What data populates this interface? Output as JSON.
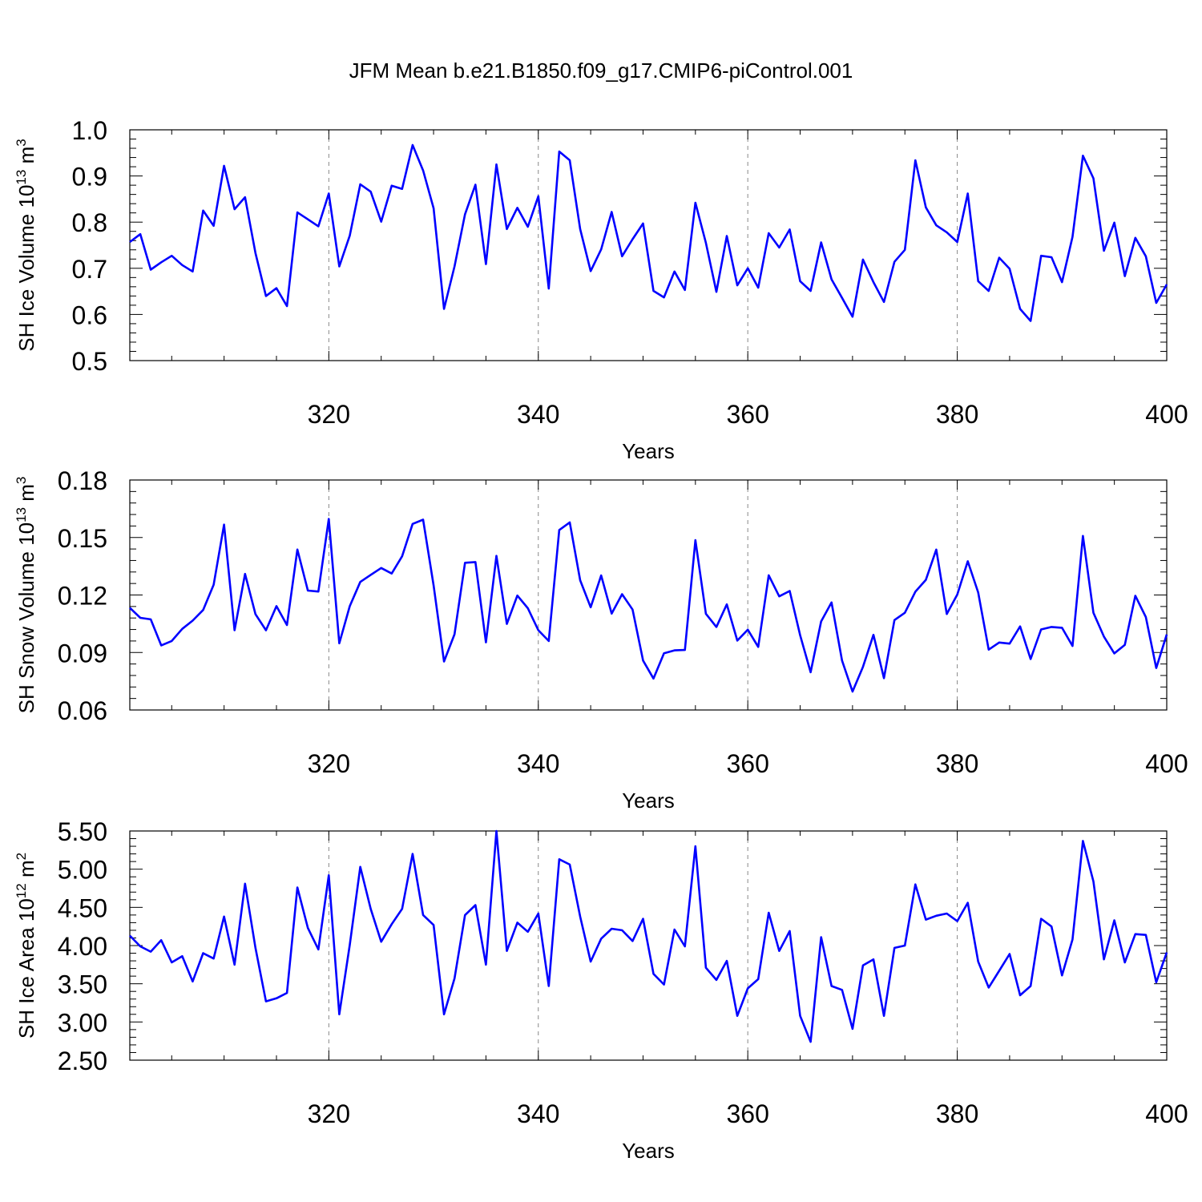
{
  "title": "JFM Mean b.e21.B1850.f09_g17.CMIP6-piControl.001",
  "colors": {
    "line": "#0000ff",
    "axis": "#000000",
    "grid": "#888888"
  },
  "chart_data": [
    {
      "type": "line",
      "xlabel": "Years",
      "ylabel": "SH Ice Volume 10",
      "ylabel_sup": "13",
      "ylabel_unit": " m",
      "ylabel_unit_sup": "3",
      "xlim": [
        301,
        400
      ],
      "ylim": [
        0.5,
        1.0
      ],
      "xticks": [
        320,
        340,
        360,
        380,
        400
      ],
      "yticks": [
        "0.5",
        "0.6",
        "0.7",
        "0.8",
        "0.9",
        "1.0"
      ],
      "grid_x": [
        320,
        340,
        360,
        380
      ],
      "x_start": 301,
      "series": [
        {
          "values": [
            0.757,
            0.774,
            0.697,
            0.713,
            0.727,
            0.707,
            0.693,
            0.825,
            0.792,
            0.922,
            0.828,
            0.854,
            0.733,
            0.64,
            0.657,
            0.618,
            0.821,
            0.806,
            0.791,
            0.862,
            0.704,
            0.771,
            0.882,
            0.866,
            0.801,
            0.879,
            0.872,
            0.967,
            0.912,
            0.83,
            0.612,
            0.704,
            0.817,
            0.881,
            0.709,
            0.925,
            0.785,
            0.831,
            0.79,
            0.856,
            0.656,
            0.953,
            0.934,
            0.785,
            0.694,
            0.741,
            0.822,
            0.726,
            0.763,
            0.797,
            0.651,
            0.637,
            0.693,
            0.653,
            0.842,
            0.755,
            0.649,
            0.77,
            0.663,
            0.7,
            0.658,
            0.776,
            0.745,
            0.784,
            0.672,
            0.651,
            0.756,
            0.676,
            0.636,
            0.595,
            0.719,
            0.67,
            0.627,
            0.714,
            0.74,
            0.934,
            0.832,
            0.793,
            0.778,
            0.757,
            0.862,
            0.672,
            0.651,
            0.723,
            0.699,
            0.612,
            0.586,
            0.727,
            0.724,
            0.67,
            0.768,
            0.944,
            0.895,
            0.738,
            0.799,
            0.683,
            0.766,
            0.726,
            0.625,
            0.665
          ]
        }
      ]
    },
    {
      "type": "line",
      "xlabel": "Years",
      "ylabel": "SH Snow Volume 10",
      "ylabel_sup": "13",
      "ylabel_unit": " m",
      "ylabel_unit_sup": "3",
      "xlim": [
        301,
        400
      ],
      "ylim": [
        0.06,
        0.18
      ],
      "xticks": [
        320,
        340,
        360,
        380,
        400
      ],
      "yticks": [
        "0.06",
        "0.09",
        "0.12",
        "0.15",
        "0.18"
      ],
      "grid_x": [
        320,
        340,
        360,
        380
      ],
      "x_start": 301,
      "series": [
        {
          "values": [
            0.1133,
            0.1081,
            0.1073,
            0.0937,
            0.096,
            0.1023,
            0.1066,
            0.1122,
            0.1253,
            0.1567,
            0.1016,
            0.131,
            0.11,
            0.1016,
            0.1142,
            0.1043,
            0.1437,
            0.1223,
            0.1218,
            0.1597,
            0.0948,
            0.1142,
            0.1268,
            0.1305,
            0.1341,
            0.1312,
            0.1402,
            0.1571,
            0.1593,
            0.125,
            0.0853,
            0.0995,
            0.1368,
            0.1372,
            0.0953,
            0.1404,
            0.1049,
            0.1197,
            0.1131,
            0.1016,
            0.096,
            0.1539,
            0.1579,
            0.1277,
            0.1136,
            0.1302,
            0.1103,
            0.1204,
            0.1124,
            0.0858,
            0.0764,
            0.0896,
            0.0911,
            0.0913,
            0.1486,
            0.1102,
            0.1033,
            0.1151,
            0.0962,
            0.1019,
            0.0929,
            0.1303,
            0.1193,
            0.1221,
            0.099,
            0.0797,
            0.1062,
            0.1161,
            0.0858,
            0.0696,
            0.0825,
            0.0992,
            0.0766,
            0.1069,
            0.1107,
            0.1217,
            0.1279,
            0.1437,
            0.1101,
            0.1202,
            0.1376,
            0.1213,
            0.0915,
            0.0952,
            0.0946,
            0.1036,
            0.0866,
            0.102,
            0.1033,
            0.1029,
            0.0934,
            0.1508,
            0.1107,
            0.0983,
            0.0895,
            0.094,
            0.1196,
            0.1085,
            0.0819,
            0.0994
          ]
        }
      ]
    },
    {
      "type": "line",
      "xlabel": "Years",
      "ylabel": "SH Ice Area 10",
      "ylabel_sup": "12",
      "ylabel_unit": " m",
      "ylabel_unit_sup": "2",
      "xlim": [
        301,
        400
      ],
      "ylim": [
        2.5,
        5.5
      ],
      "xticks": [
        320,
        340,
        360,
        380,
        400
      ],
      "yticks": [
        "2.50",
        "3.00",
        "3.50",
        "4.00",
        "4.50",
        "5.00",
        "5.50"
      ],
      "grid_x": [
        320,
        340,
        360,
        380
      ],
      "x_start": 301,
      "series": [
        {
          "values": [
            4.13,
            3.99,
            3.92,
            4.07,
            3.78,
            3.86,
            3.53,
            3.9,
            3.83,
            4.38,
            3.75,
            4.81,
            3.97,
            3.27,
            3.31,
            3.38,
            4.76,
            4.23,
            3.95,
            4.92,
            3.1,
            4.01,
            5.03,
            4.48,
            4.05,
            4.28,
            4.48,
            5.2,
            4.4,
            4.27,
            3.1,
            3.57,
            4.4,
            4.53,
            3.75,
            5.5,
            3.93,
            4.3,
            4.18,
            4.42,
            3.47,
            5.13,
            5.06,
            4.38,
            3.79,
            4.09,
            4.22,
            4.2,
            4.06,
            4.35,
            3.63,
            3.49,
            4.21,
            3.99,
            5.3,
            3.71,
            3.55,
            3.8,
            3.08,
            3.44,
            3.56,
            4.43,
            3.93,
            4.19,
            3.08,
            2.74,
            4.11,
            3.47,
            3.42,
            2.91,
            3.74,
            3.82,
            3.08,
            3.97,
            4.0,
            4.8,
            4.34,
            4.39,
            4.42,
            4.32,
            4.56,
            3.79,
            3.45,
            3.67,
            3.89,
            3.35,
            3.47,
            4.35,
            4.25,
            3.61,
            4.08,
            5.37,
            4.84,
            3.82,
            4.33,
            3.78,
            4.15,
            4.14,
            3.52,
            3.91
          ]
        }
      ]
    }
  ]
}
